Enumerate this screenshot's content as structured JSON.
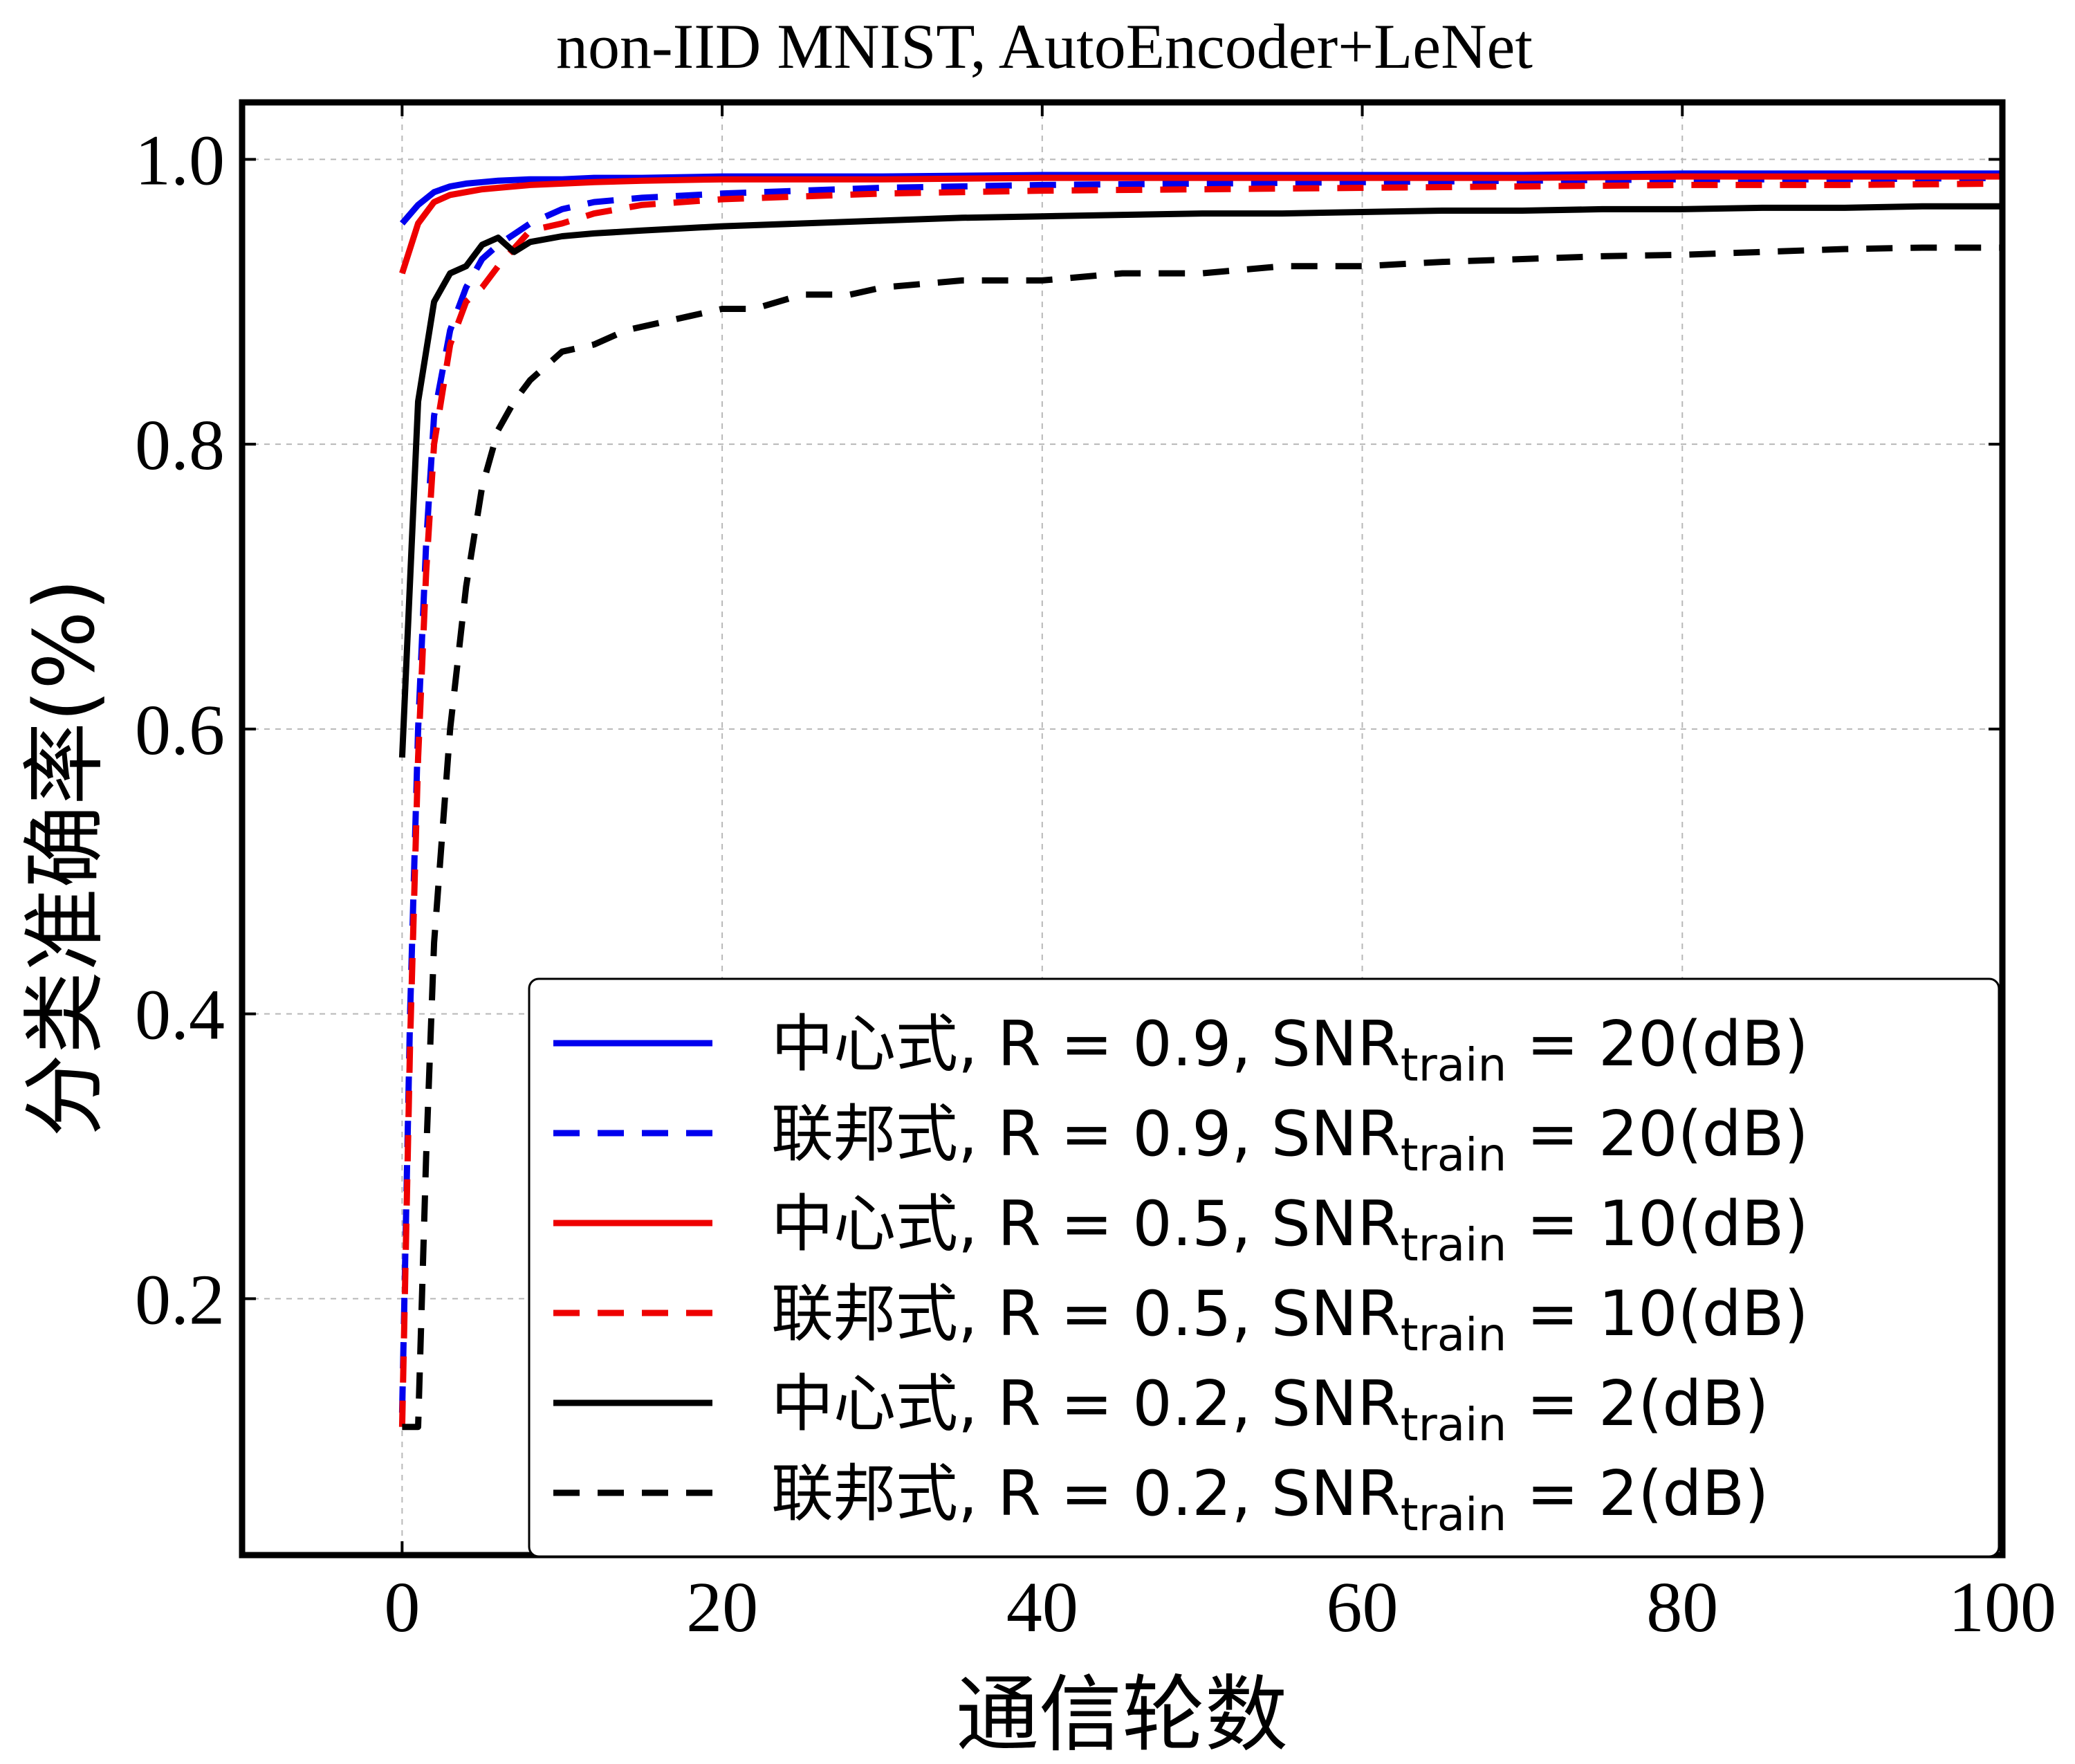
{
  "chart_data": {
    "type": "line",
    "title": "non-IID MNIST, AutoEncoder+LeNet",
    "xlabel": "通信轮数",
    "ylabel": "分类准确率(%)",
    "xlim": [
      -10,
      100
    ],
    "ylim": [
      0.02,
      1.04
    ],
    "xticks": [
      0,
      20,
      40,
      60,
      80,
      100
    ],
    "xtick_labels": [
      "0",
      "20",
      "40",
      "60",
      "80",
      "100"
    ],
    "yticks": [
      0.2,
      0.4,
      0.6,
      0.8,
      1.0
    ],
    "ytick_labels": [
      "0.2",
      "0.4",
      "0.6",
      "0.8",
      "1.0"
    ],
    "grid": true,
    "legend_placement": "bottom-right",
    "series": [
      {
        "name": "中心式, R = 0.9, SNR_train = 20(dB)",
        "legend": {
          "prefix": "中心式, R = 0.9, SNR",
          "sub": "train",
          "suffix": " = 20(dB)"
        },
        "color": "#0000ee",
        "dash": "solid",
        "x": [
          0,
          1,
          2,
          3,
          4,
          5,
          6,
          8,
          10,
          12,
          15,
          20,
          25,
          30,
          40,
          50,
          60,
          70,
          80,
          90,
          100
        ],
        "y": [
          0.955,
          0.968,
          0.977,
          0.981,
          0.983,
          0.984,
          0.985,
          0.986,
          0.986,
          0.987,
          0.987,
          0.988,
          0.988,
          0.988,
          0.989,
          0.989,
          0.989,
          0.989,
          0.99,
          0.99,
          0.99
        ]
      },
      {
        "name": "联邦式, R = 0.9, SNR_train = 20(dB)",
        "legend": {
          "prefix": "联邦式, R = 0.9, SNR",
          "sub": "train",
          "suffix": " = 20(dB)"
        },
        "color": "#0000ee",
        "dash": "dashed",
        "x": [
          0,
          0.5,
          1,
          1.5,
          2,
          3,
          4,
          5,
          6,
          8,
          10,
          12,
          15,
          20,
          25,
          30,
          40,
          50,
          60,
          70,
          80,
          90,
          100
        ],
        "y": [
          0.12,
          0.4,
          0.6,
          0.73,
          0.82,
          0.88,
          0.91,
          0.93,
          0.94,
          0.955,
          0.965,
          0.97,
          0.973,
          0.976,
          0.978,
          0.98,
          0.982,
          0.983,
          0.984,
          0.985,
          0.986,
          0.986,
          0.987
        ]
      },
      {
        "name": "中心式, R = 0.5, SNR_train = 10(dB)",
        "legend": {
          "prefix": "中心式, R = 0.5, SNR",
          "sub": "train",
          "suffix": " = 10(dB)"
        },
        "color": "#ee0000",
        "dash": "solid",
        "x": [
          0,
          1,
          2,
          3,
          4,
          5,
          6,
          8,
          10,
          12,
          15,
          20,
          25,
          30,
          40,
          50,
          60,
          70,
          80,
          90,
          100
        ],
        "y": [
          0.92,
          0.955,
          0.97,
          0.975,
          0.977,
          0.979,
          0.98,
          0.982,
          0.983,
          0.984,
          0.985,
          0.986,
          0.986,
          0.986,
          0.987,
          0.987,
          0.987,
          0.987,
          0.988,
          0.988,
          0.988
        ]
      },
      {
        "name": "联邦式, R = 0.5, SNR_train = 10(dB)",
        "legend": {
          "prefix": "联邦式, R = 0.5, SNR",
          "sub": "train",
          "suffix": " = 10(dB)"
        },
        "color": "#ee0000",
        "dash": "dashed",
        "x": [
          0,
          0.5,
          1,
          1.5,
          2,
          3,
          4,
          5,
          6,
          8,
          10,
          12,
          15,
          20,
          25,
          30,
          40,
          50,
          60,
          70,
          80,
          90,
          100
        ],
        "y": [
          0.11,
          0.38,
          0.58,
          0.71,
          0.8,
          0.87,
          0.9,
          0.91,
          0.925,
          0.95,
          0.955,
          0.962,
          0.968,
          0.972,
          0.974,
          0.976,
          0.978,
          0.979,
          0.98,
          0.981,
          0.982,
          0.982,
          0.983
        ]
      },
      {
        "name": "中心式, R = 0.2, SNR_train = 2(dB)",
        "legend": {
          "prefix": "中心式, R = 0.2, SNR",
          "sub": "train",
          "suffix": " = 2(dB)"
        },
        "color": "#000000",
        "dash": "solid",
        "x": [
          0,
          1,
          2,
          3,
          4,
          5,
          6,
          7,
          8,
          10,
          12,
          15,
          20,
          25,
          30,
          35,
          40,
          45,
          50,
          55,
          60,
          65,
          70,
          75,
          80,
          85,
          90,
          95,
          100
        ],
        "y": [
          0.58,
          0.83,
          0.9,
          0.92,
          0.925,
          0.94,
          0.945,
          0.935,
          0.942,
          0.946,
          0.948,
          0.95,
          0.953,
          0.955,
          0.957,
          0.959,
          0.96,
          0.961,
          0.962,
          0.962,
          0.963,
          0.964,
          0.964,
          0.965,
          0.965,
          0.966,
          0.966,
          0.967,
          0.967
        ]
      },
      {
        "name": "联邦式, R = 0.2, SNR_train = 2(dB)",
        "legend": {
          "prefix": "联邦式, R = 0.2, SNR",
          "sub": "train",
          "suffix": " = 2(dB)"
        },
        "color": "#000000",
        "dash": "dashed",
        "x": [
          0,
          1,
          1.5,
          2,
          3,
          4,
          5,
          6,
          7,
          8,
          9,
          10,
          12,
          14,
          16,
          18,
          20,
          22,
          25,
          28,
          30,
          35,
          40,
          45,
          50,
          55,
          60,
          65,
          70,
          75,
          80,
          85,
          90,
          95,
          100
        ],
        "y": [
          0.11,
          0.11,
          0.3,
          0.45,
          0.6,
          0.7,
          0.77,
          0.81,
          0.83,
          0.845,
          0.855,
          0.865,
          0.87,
          0.88,
          0.885,
          0.89,
          0.895,
          0.895,
          0.905,
          0.905,
          0.91,
          0.915,
          0.915,
          0.92,
          0.92,
          0.925,
          0.925,
          0.928,
          0.93,
          0.932,
          0.933,
          0.935,
          0.937,
          0.938,
          0.938
        ]
      }
    ]
  }
}
